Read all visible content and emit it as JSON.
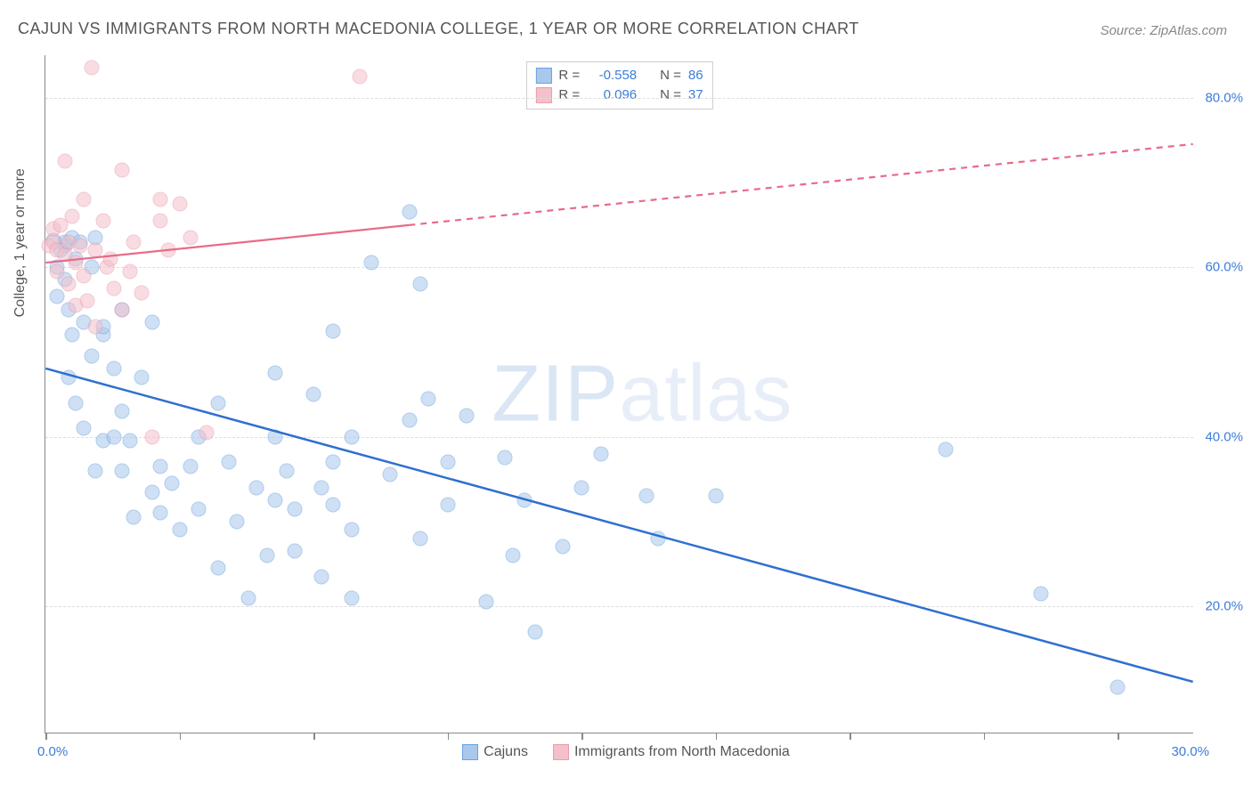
{
  "title": "CAJUN VS IMMIGRANTS FROM NORTH MACEDONIA COLLEGE, 1 YEAR OR MORE CORRELATION CHART",
  "source_label": "Source: ZipAtlas.com",
  "watermark": "ZIPatlas",
  "y_axis_title": "College, 1 year or more",
  "chart": {
    "type": "scatter",
    "background_color": "#ffffff",
    "grid_color": "#dddddd",
    "axis_color": "#888888",
    "xlim": [
      0.0,
      30.0
    ],
    "ylim": [
      5.0,
      85.0
    ],
    "x_ticks": [
      0,
      3.5,
      7,
      10.5,
      14,
      17.5,
      21,
      24.5,
      28
    ],
    "x_tick_labels": {
      "min": "0.0%",
      "max": "30.0%"
    },
    "y_gridlines": [
      20.0,
      40.0,
      60.0,
      80.0
    ],
    "y_tick_labels": [
      "20.0%",
      "40.0%",
      "60.0%",
      "80.0%"
    ],
    "marker_radius": 8.5,
    "marker_opacity": 0.55,
    "series": [
      {
        "name": "Cajuns",
        "color_fill": "#a9c8ec",
        "color_stroke": "#6ba3e0",
        "R": "-0.558",
        "N": "86",
        "trend": {
          "x1": 0.0,
          "y1": 48.0,
          "x2": 30.0,
          "y2": 11.0,
          "solid_until_x": 30.0,
          "color": "#2e6fd0",
          "width": 2.5
        },
        "points": [
          [
            0.2,
            63.2
          ],
          [
            0.3,
            60.0
          ],
          [
            0.3,
            56.5
          ],
          [
            0.5,
            62.5
          ],
          [
            0.5,
            63.0
          ],
          [
            0.5,
            58.5
          ],
          [
            0.6,
            55.0
          ],
          [
            0.6,
            47.0
          ],
          [
            0.7,
            63.5
          ],
          [
            0.7,
            52.0
          ],
          [
            0.8,
            61.0
          ],
          [
            0.8,
            44.0
          ],
          [
            0.9,
            63.0
          ],
          [
            1.0,
            41.0
          ],
          [
            1.0,
            53.5
          ],
          [
            1.2,
            60.0
          ],
          [
            1.2,
            49.5
          ],
          [
            1.3,
            63.5
          ],
          [
            1.3,
            36.0
          ],
          [
            1.5,
            52.0
          ],
          [
            1.5,
            39.5
          ],
          [
            1.5,
            53.0
          ],
          [
            1.8,
            48.0
          ],
          [
            1.8,
            40.0
          ],
          [
            2.0,
            55.0
          ],
          [
            2.0,
            43.0
          ],
          [
            2.0,
            36.0
          ],
          [
            2.2,
            39.5
          ],
          [
            2.3,
            30.5
          ],
          [
            2.5,
            47.0
          ],
          [
            2.8,
            33.5
          ],
          [
            2.8,
            53.5
          ],
          [
            3.0,
            36.5
          ],
          [
            3.0,
            31.0
          ],
          [
            3.3,
            34.5
          ],
          [
            3.5,
            29.0
          ],
          [
            3.8,
            36.5
          ],
          [
            4.0,
            40.0
          ],
          [
            4.0,
            31.5
          ],
          [
            4.5,
            44.0
          ],
          [
            4.5,
            24.5
          ],
          [
            4.8,
            37.0
          ],
          [
            5.0,
            30.0
          ],
          [
            5.3,
            21.0
          ],
          [
            5.5,
            34.0
          ],
          [
            5.8,
            26.0
          ],
          [
            6.0,
            47.5
          ],
          [
            6.0,
            32.5
          ],
          [
            6.0,
            40.0
          ],
          [
            6.3,
            36.0
          ],
          [
            6.5,
            26.5
          ],
          [
            6.5,
            31.5
          ],
          [
            7.0,
            45.0
          ],
          [
            7.2,
            34.0
          ],
          [
            7.2,
            23.5
          ],
          [
            7.5,
            52.5
          ],
          [
            7.5,
            37.0
          ],
          [
            7.5,
            32.0
          ],
          [
            8.0,
            29.0
          ],
          [
            8.0,
            40.0
          ],
          [
            8.0,
            21.0
          ],
          [
            8.5,
            60.5
          ],
          [
            9.0,
            35.5
          ],
          [
            9.5,
            66.5
          ],
          [
            9.5,
            42.0
          ],
          [
            9.8,
            58.0
          ],
          [
            9.8,
            28.0
          ],
          [
            10.0,
            44.5
          ],
          [
            10.5,
            32.0
          ],
          [
            10.5,
            37.0
          ],
          [
            11.0,
            42.5
          ],
          [
            11.5,
            20.5
          ],
          [
            12.0,
            37.5
          ],
          [
            12.2,
            26.0
          ],
          [
            12.5,
            32.5
          ],
          [
            12.8,
            17.0
          ],
          [
            13.5,
            27.0
          ],
          [
            14.0,
            34.0
          ],
          [
            14.5,
            38.0
          ],
          [
            15.7,
            33.0
          ],
          [
            16.0,
            28.0
          ],
          [
            17.5,
            33.0
          ],
          [
            23.5,
            38.5
          ],
          [
            26.0,
            21.5
          ],
          [
            28.0,
            10.5
          ],
          [
            0.4,
            62.0
          ]
        ]
      },
      {
        "name": "Immigrants from North Macedonia",
        "color_fill": "#f4c0cb",
        "color_stroke": "#eb9bad",
        "R": "0.096",
        "N": "37",
        "trend": {
          "x1": 0.0,
          "y1": 60.5,
          "x2": 30.0,
          "y2": 74.5,
          "solid_until_x": 9.5,
          "color": "#e86b88",
          "width": 2.2
        },
        "points": [
          [
            0.1,
            62.5
          ],
          [
            0.2,
            63.0
          ],
          [
            0.2,
            64.5
          ],
          [
            0.3,
            62.0
          ],
          [
            0.3,
            59.5
          ],
          [
            0.4,
            65.0
          ],
          [
            0.5,
            61.5
          ],
          [
            0.5,
            72.5
          ],
          [
            0.6,
            58.0
          ],
          [
            0.6,
            63.0
          ],
          [
            0.7,
            66.0
          ],
          [
            0.8,
            60.5
          ],
          [
            0.8,
            55.5
          ],
          [
            0.9,
            62.5
          ],
          [
            1.0,
            68.0
          ],
          [
            1.0,
            59.0
          ],
          [
            1.1,
            56.0
          ],
          [
            1.2,
            83.5
          ],
          [
            1.3,
            62.0
          ],
          [
            1.3,
            53.0
          ],
          [
            1.5,
            65.5
          ],
          [
            1.6,
            60.0
          ],
          [
            1.7,
            61.0
          ],
          [
            1.8,
            57.5
          ],
          [
            2.0,
            71.5
          ],
          [
            2.0,
            55.0
          ],
          [
            2.2,
            59.5
          ],
          [
            2.3,
            63.0
          ],
          [
            2.5,
            57.0
          ],
          [
            2.8,
            40.0
          ],
          [
            3.0,
            68.0
          ],
          [
            3.0,
            65.5
          ],
          [
            3.2,
            62.0
          ],
          [
            3.5,
            67.5
          ],
          [
            3.8,
            63.5
          ],
          [
            4.2,
            40.5
          ],
          [
            8.2,
            82.5
          ]
        ]
      }
    ]
  },
  "legend_top": {
    "rows": [
      {
        "swatch_fill": "#a9c8ec",
        "swatch_stroke": "#6ba3e0",
        "r_label": "R =",
        "r_val": "-0.558",
        "n_label": "N =",
        "n_val": "86"
      },
      {
        "swatch_fill": "#f4c0cb",
        "swatch_stroke": "#eb9bad",
        "r_label": "R =",
        "r_val": "0.096",
        "n_label": "N =",
        "n_val": "37"
      }
    ]
  },
  "legend_bottom": [
    {
      "swatch_fill": "#a9c8ec",
      "swatch_stroke": "#6ba3e0",
      "label": "Cajuns"
    },
    {
      "swatch_fill": "#f4c0cb",
      "swatch_stroke": "#eb9bad",
      "label": "Immigrants from North Macedonia"
    }
  ]
}
